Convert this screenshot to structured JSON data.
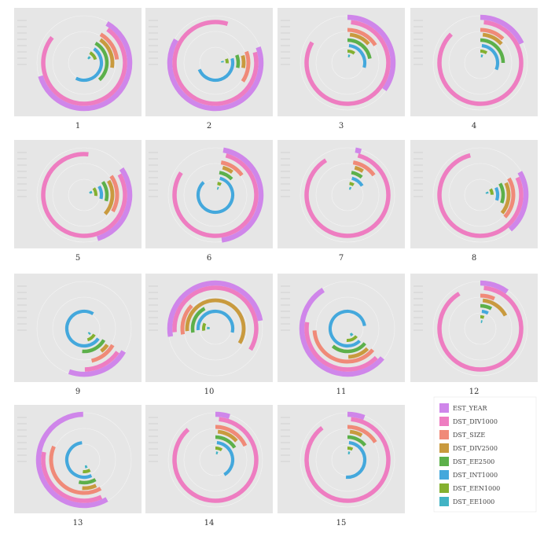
{
  "figure_title": "",
  "legend": {
    "entries": [
      {
        "key": "EST_YEAR",
        "label": "EST_YEAR",
        "color": "#cf86ea"
      },
      {
        "key": "DST_DIV1000",
        "label": "DST_DIV1000",
        "color": "#ee7dc1"
      },
      {
        "key": "DST_SIZE",
        "label": "DST_SIZE",
        "color": "#f08a78"
      },
      {
        "key": "DST_DIV2500",
        "label": "DST_DIV2500",
        "color": "#c99a3e"
      },
      {
        "key": "DST_EE2500",
        "label": "DST_EE2500",
        "color": "#5cb04a"
      },
      {
        "key": "DST_INT1000",
        "label": "DST_INT1000",
        "color": "#44a8dc"
      },
      {
        "key": "DST_EEN1000",
        "label": "DST_EEN1000",
        "color": "#84b030"
      },
      {
        "key": "DST_EE1000",
        "label": "DST_EE1000",
        "color": "#41b3c4"
      }
    ]
  },
  "chart_data": {
    "type": "radial-bar",
    "value_unit": "fraction of full circle",
    "panels": [
      {
        "label": "1",
        "values": {
          "EST_YEAR": 0.62,
          "DST_DIV1000": 0.76,
          "DST_SIZE": 0.15,
          "DST_DIV2500": 0.18,
          "DST_EE2500": 0.3,
          "DST_INT1000": 0.48,
          "DST_EEN1000": 0.12,
          "DST_EE1000": 0.05
        }
      },
      {
        "label": "2",
        "values": {
          "EST_YEAR": 0.64,
          "DST_DIV1000": 0.84,
          "DST_SIZE": 0.15,
          "DST_DIV2500": 0.07,
          "DST_EE2500": 0.09,
          "DST_INT1000": 0.48,
          "DST_EEN1000": 0.06,
          "DST_EE1000": 0.03
        }
      },
      {
        "label": "3",
        "values": {
          "EST_YEAR": 0.35,
          "DST_DIV1000": 0.82,
          "DST_SIZE": 0.16,
          "DST_DIV2500": 0.12,
          "DST_EE2500": 0.22,
          "DST_INT1000": 0.28,
          "DST_EEN1000": 0.1,
          "DST_EE1000": 0.04
        }
      },
      {
        "label": "4",
        "values": {
          "EST_YEAR": 0.18,
          "DST_DIV1000": 0.86,
          "DST_SIZE": 0.12,
          "DST_DIV2500": 0.12,
          "DST_EE2500": 0.25,
          "DST_INT1000": 0.3,
          "DST_EEN1000": 0.09,
          "DST_EE1000": 0.04
        }
      },
      {
        "label": "5",
        "values": {
          "EST_YEAR": 0.3,
          "DST_DIV1000": 0.85,
          "DST_SIZE": 0.18,
          "DST_DIV2500": 0.2,
          "DST_EE2500": 0.14,
          "DST_INT1000": 0.12,
          "DST_EEN1000": 0.11,
          "DST_EE1000": 0.05
        }
      },
      {
        "label": "6",
        "values": {
          "EST_YEAR": 0.45,
          "DST_DIV1000": 0.8,
          "DST_SIZE": 0.12,
          "DST_DIV2500": 0.06,
          "DST_EE2500": 0.1,
          "DST_INT1000": 0.84,
          "DST_EEN1000": 0.05,
          "DST_EE1000": 0.03
        }
      },
      {
        "label": "7",
        "values": {
          "EST_YEAR": 0.02,
          "DST_DIV1000": 0.87,
          "DST_SIZE": 0.12,
          "DST_DIV2500": 0.05,
          "DST_EE2500": 0.08,
          "DST_INT1000": 0.12,
          "DST_EEN1000": 0.06,
          "DST_EE1000": 0.04
        }
      },
      {
        "label": "8",
        "values": {
          "EST_YEAR": 0.22,
          "DST_DIV1000": 0.78,
          "DST_SIZE": 0.2,
          "DST_DIV2500": 0.18,
          "DST_EE2500": 0.14,
          "DST_INT1000": 0.12,
          "DST_EEN1000": 0.08,
          "DST_EE1000": 0.04
        }
      },
      {
        "label": "9",
        "values": {
          "EST_YEAR": 0.22,
          "DST_DIV1000": 0.15,
          "DST_SIZE": 0.13,
          "DST_DIV2500": 0.05,
          "DST_EE2500": 0.18,
          "DST_INT1000": 0.74,
          "DST_EEN1000": 0.12,
          "DST_EE1000": 0.04
        }
      },
      {
        "label": "10",
        "values": {
          "EST_YEAR": 0.5,
          "DST_DIV1000": 0.6,
          "DST_SIZE": 0.15,
          "DST_DIV2500": 0.6,
          "DST_EE2500": 0.2,
          "DST_INT1000": 0.55,
          "DST_EEN1000": 0.1,
          "DST_EE1000": 0.05
        }
      },
      {
        "label": "11",
        "values": {
          "EST_YEAR": 0.55,
          "DST_DIV1000": 0.4,
          "DST_SIZE": 0.38,
          "DST_DIV2500": 0.12,
          "DST_EE2500": 0.25,
          "DST_INT1000": 0.85,
          "DST_EEN1000": 0.15,
          "DST_EE1000": 0.06
        }
      },
      {
        "label": "12",
        "values": {
          "EST_YEAR": 0.1,
          "DST_DIV1000": 0.9,
          "DST_SIZE": 0.07,
          "DST_DIV2500": 0.16,
          "DST_EE2500": 0.08,
          "DST_INT1000": 0.06,
          "DST_EEN1000": 0.05,
          "DST_EE1000": 0.03
        }
      },
      {
        "label": "13",
        "values": {
          "EST_YEAR": 0.58,
          "DST_DIV1000": 0.35,
          "DST_SIZE": 0.4,
          "DST_DIV2500": 0.08,
          "DST_EE2500": 0.12,
          "DST_INT1000": 0.55,
          "DST_EEN1000": 0.1,
          "DST_EE1000": 0.05
        }
      },
      {
        "label": "14",
        "values": {
          "EST_YEAR": 0.05,
          "DST_DIV1000": 0.87,
          "DST_SIZE": 0.18,
          "DST_DIV2500": 0.12,
          "DST_EE2500": 0.16,
          "DST_INT1000": 0.4,
          "DST_EEN1000": 0.09,
          "DST_EE1000": 0.04
        }
      },
      {
        "label": "15",
        "values": {
          "EST_YEAR": 0.06,
          "DST_DIV1000": 0.88,
          "DST_SIZE": 0.16,
          "DST_DIV2500": 0.07,
          "DST_EE2500": 0.14,
          "DST_INT1000": 0.5,
          "DST_EEN1000": 0.07,
          "DST_EE1000": 0.04
        }
      }
    ]
  }
}
